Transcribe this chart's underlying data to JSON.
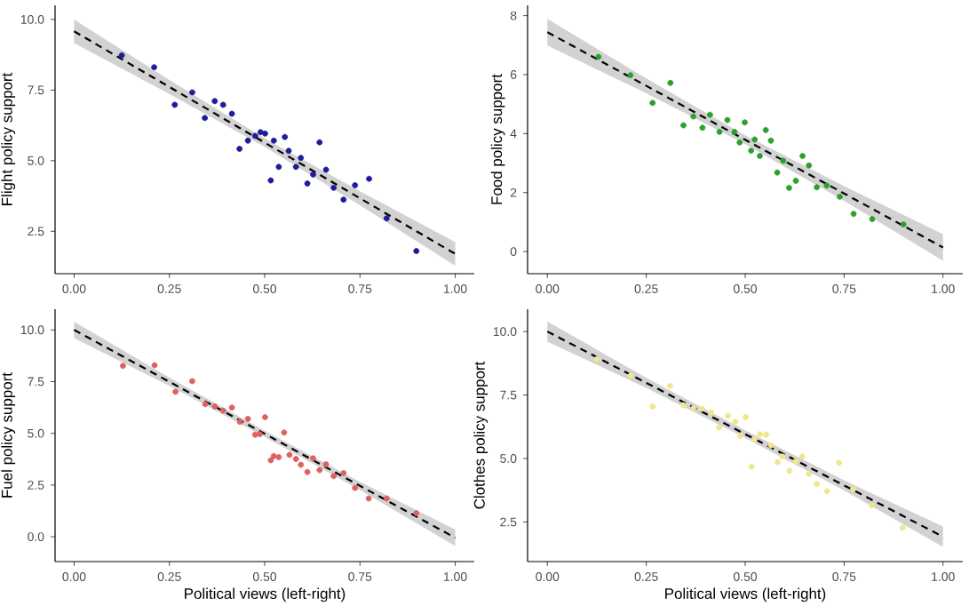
{
  "chart_data": [
    {
      "type": "scatter",
      "ylabel": "Flight policy support",
      "xlim": [
        -0.05,
        1.05
      ],
      "ylim": [
        1.0,
        10.5
      ],
      "xticks": [
        {
          "value": 0,
          "label": "0.00"
        },
        {
          "value": 0.25,
          "label": "0.25"
        },
        {
          "value": 0.5,
          "label": "0.50"
        },
        {
          "value": 0.75,
          "label": "0.75"
        },
        {
          "value": 1,
          "label": "1.00"
        }
      ],
      "yticks": [
        {
          "value": 2.5,
          "label": "2.5"
        },
        {
          "value": 5,
          "label": "5.0"
        },
        {
          "value": 7.5,
          "label": "7.5"
        },
        {
          "value": 10,
          "label": "10.0"
        }
      ],
      "marker": "circle",
      "series": [
        {
          "color": "#1c1c9c",
          "x": [
            0.125,
            0.21,
            0.264,
            0.31,
            0.343,
            0.369,
            0.391,
            0.414,
            0.434,
            0.456,
            0.475,
            0.489,
            0.501,
            0.516,
            0.524,
            0.537,
            0.553,
            0.563,
            0.582,
            0.595,
            0.612,
            0.627,
            0.644,
            0.661,
            0.681,
            0.707,
            0.737,
            0.774,
            0.82,
            0.898
          ],
          "values": [
            8.73,
            8.31,
            6.98,
            7.42,
            6.51,
            7.11,
            6.98,
            6.66,
            5.42,
            5.71,
            5.88,
            6.01,
            5.96,
            4.3,
            5.71,
            4.78,
            5.84,
            5.35,
            4.78,
            5.1,
            4.19,
            4.51,
            5.65,
            4.68,
            4.04,
            3.62,
            4.13,
            4.36,
            2.96,
            1.8
          ]
        },
        {
          "type": "line",
          "color": "#000000",
          "line_style": "dashed",
          "marker": "none",
          "x": [
            0,
            0.25,
            0.5,
            0.75,
            1
          ],
          "values": [
            9.58,
            7.61,
            5.64,
            3.67,
            1.7
          ],
          "lower": [
            9.16,
            7.36,
            5.49,
            3.42,
            1.28
          ],
          "upper": [
            10.0,
            7.86,
            5.79,
            3.92,
            2.12
          ]
        }
      ]
    },
    {
      "type": "scatter",
      "ylabel": "Food policy support",
      "xlim": [
        -0.05,
        1.05
      ],
      "ylim": [
        -0.75,
        8.35
      ],
      "xticks": [
        {
          "value": 0,
          "label": "0.00"
        },
        {
          "value": 0.25,
          "label": "0.25"
        },
        {
          "value": 0.5,
          "label": "0.50"
        },
        {
          "value": 0.75,
          "label": "0.75"
        },
        {
          "value": 1,
          "label": "1.00"
        }
      ],
      "yticks": [
        0,
        2,
        4,
        6,
        8
      ],
      "marker": "circle",
      "series": [
        {
          "color": "#2ca02c",
          "x": [
            0.129,
            0.21,
            0.266,
            0.311,
            0.344,
            0.369,
            0.392,
            0.411,
            0.435,
            0.455,
            0.473,
            0.486,
            0.499,
            0.515,
            0.524,
            0.537,
            0.552,
            0.565,
            0.581,
            0.596,
            0.611,
            0.628,
            0.645,
            0.661,
            0.681,
            0.706,
            0.739,
            0.774,
            0.821,
            0.9
          ],
          "values": [
            6.6,
            5.98,
            5.04,
            5.72,
            4.28,
            4.58,
            4.2,
            4.64,
            4.06,
            4.46,
            4.06,
            3.7,
            4.38,
            3.42,
            3.8,
            3.24,
            4.12,
            3.76,
            2.68,
            3.08,
            2.16,
            2.4,
            3.24,
            2.92,
            2.18,
            2.24,
            1.86,
            1.28,
            1.1,
            0.92
          ]
        },
        {
          "type": "line",
          "color": "#000000",
          "line_style": "dashed",
          "marker": "none",
          "x": [
            0,
            0.25,
            0.5,
            0.75,
            1
          ],
          "values": [
            7.44,
            5.62,
            3.79,
            1.97,
            0.14
          ],
          "lower": [
            6.99,
            5.37,
            3.64,
            1.72,
            -0.31
          ],
          "upper": [
            7.89,
            5.87,
            3.94,
            2.22,
            0.59
          ]
        }
      ]
    },
    {
      "type": "scatter",
      "xlabel": "Political views (left-right)",
      "ylabel": "Fuel policy support",
      "xlim": [
        -0.05,
        1.05
      ],
      "ylim": [
        -1.2,
        11.0
      ],
      "xticks": [
        {
          "value": 0,
          "label": "0.00"
        },
        {
          "value": 0.25,
          "label": "0.25"
        },
        {
          "value": 0.5,
          "label": "0.50"
        },
        {
          "value": 0.75,
          "label": "0.75"
        },
        {
          "value": 1,
          "label": "1.00"
        }
      ],
      "yticks": [
        {
          "value": 0,
          "label": "0.0"
        },
        {
          "value": 2.5,
          "label": "2.5"
        },
        {
          "value": 5,
          "label": "5.0"
        },
        {
          "value": 7.5,
          "label": "7.5"
        },
        {
          "value": 10,
          "label": "10.0"
        }
      ],
      "marker": "circle",
      "series": [
        {
          "color": "#e06060",
          "x": [
            0.128,
            0.211,
            0.266,
            0.31,
            0.344,
            0.369,
            0.391,
            0.414,
            0.435,
            0.456,
            0.475,
            0.487,
            0.501,
            0.516,
            0.524,
            0.537,
            0.551,
            0.565,
            0.582,
            0.595,
            0.612,
            0.627,
            0.644,
            0.661,
            0.681,
            0.707,
            0.737,
            0.773,
            0.82,
            0.898
          ],
          "values": [
            8.26,
            8.29,
            7.01,
            7.52,
            6.41,
            6.3,
            6.1,
            6.24,
            5.56,
            5.7,
            4.93,
            4.96,
            5.78,
            3.7,
            3.9,
            3.85,
            5.04,
            3.96,
            3.76,
            3.48,
            3.13,
            3.79,
            3.22,
            3.5,
            2.93,
            3.08,
            2.36,
            1.85,
            1.85,
            1.14
          ]
        },
        {
          "type": "line",
          "color": "#000000",
          "line_style": "dashed",
          "marker": "none",
          "x": [
            0,
            0.25,
            0.5,
            0.75,
            1
          ],
          "values": [
            10.0,
            7.49,
            4.98,
            2.46,
            -0.05
          ],
          "lower": [
            9.6,
            7.29,
            4.83,
            2.26,
            -0.45
          ],
          "upper": [
            10.4,
            7.69,
            5.13,
            2.66,
            0.35
          ]
        }
      ]
    },
    {
      "type": "scatter",
      "xlabel": "Political views (left-right)",
      "ylabel": "Clothes policy support",
      "xlim": [
        -0.05,
        1.05
      ],
      "ylim": [
        0.94,
        10.88
      ],
      "xticks": [
        {
          "value": 0,
          "label": "0.00"
        },
        {
          "value": 0.25,
          "label": "0.25"
        },
        {
          "value": 0.5,
          "label": "0.50"
        },
        {
          "value": 0.75,
          "label": "0.75"
        },
        {
          "value": 1,
          "label": "1.00"
        }
      ],
      "yticks": [
        {
          "value": 2.5,
          "label": "2.5"
        },
        {
          "value": 5,
          "label": "5.0"
        },
        {
          "value": 7.5,
          "label": "7.5"
        },
        {
          "value": 10,
          "label": "10.0"
        }
      ],
      "marker": "circle",
      "series": [
        {
          "color": "#f0e68c",
          "x": [
            0.125,
            0.21,
            0.266,
            0.31,
            0.344,
            0.369,
            0.391,
            0.414,
            0.434,
            0.456,
            0.475,
            0.487,
            0.501,
            0.516,
            0.524,
            0.537,
            0.553,
            0.565,
            0.582,
            0.594,
            0.612,
            0.627,
            0.644,
            0.661,
            0.681,
            0.707,
            0.737,
            0.773,
            0.82,
            0.898
          ],
          "values": [
            8.91,
            8.26,
            7.05,
            7.86,
            7.1,
            6.98,
            6.96,
            6.82,
            6.22,
            6.68,
            6.45,
            5.89,
            6.63,
            4.68,
            5.75,
            5.96,
            5.94,
            5.52,
            4.85,
            5.08,
            4.52,
            4.89,
            5.08,
            4.4,
            3.99,
            3.71,
            4.83,
            3.8,
            3.15,
            2.27
          ]
        },
        {
          "type": "line",
          "color": "#000000",
          "line_style": "dashed",
          "marker": "none",
          "x": [
            0,
            0.25,
            0.5,
            0.75,
            1
          ],
          "values": [
            10.0,
            7.98,
            5.96,
            3.94,
            1.92
          ],
          "lower": [
            9.6,
            7.78,
            5.81,
            3.74,
            1.52
          ],
          "upper": [
            10.4,
            8.18,
            6.11,
            4.14,
            2.32
          ]
        }
      ]
    }
  ]
}
